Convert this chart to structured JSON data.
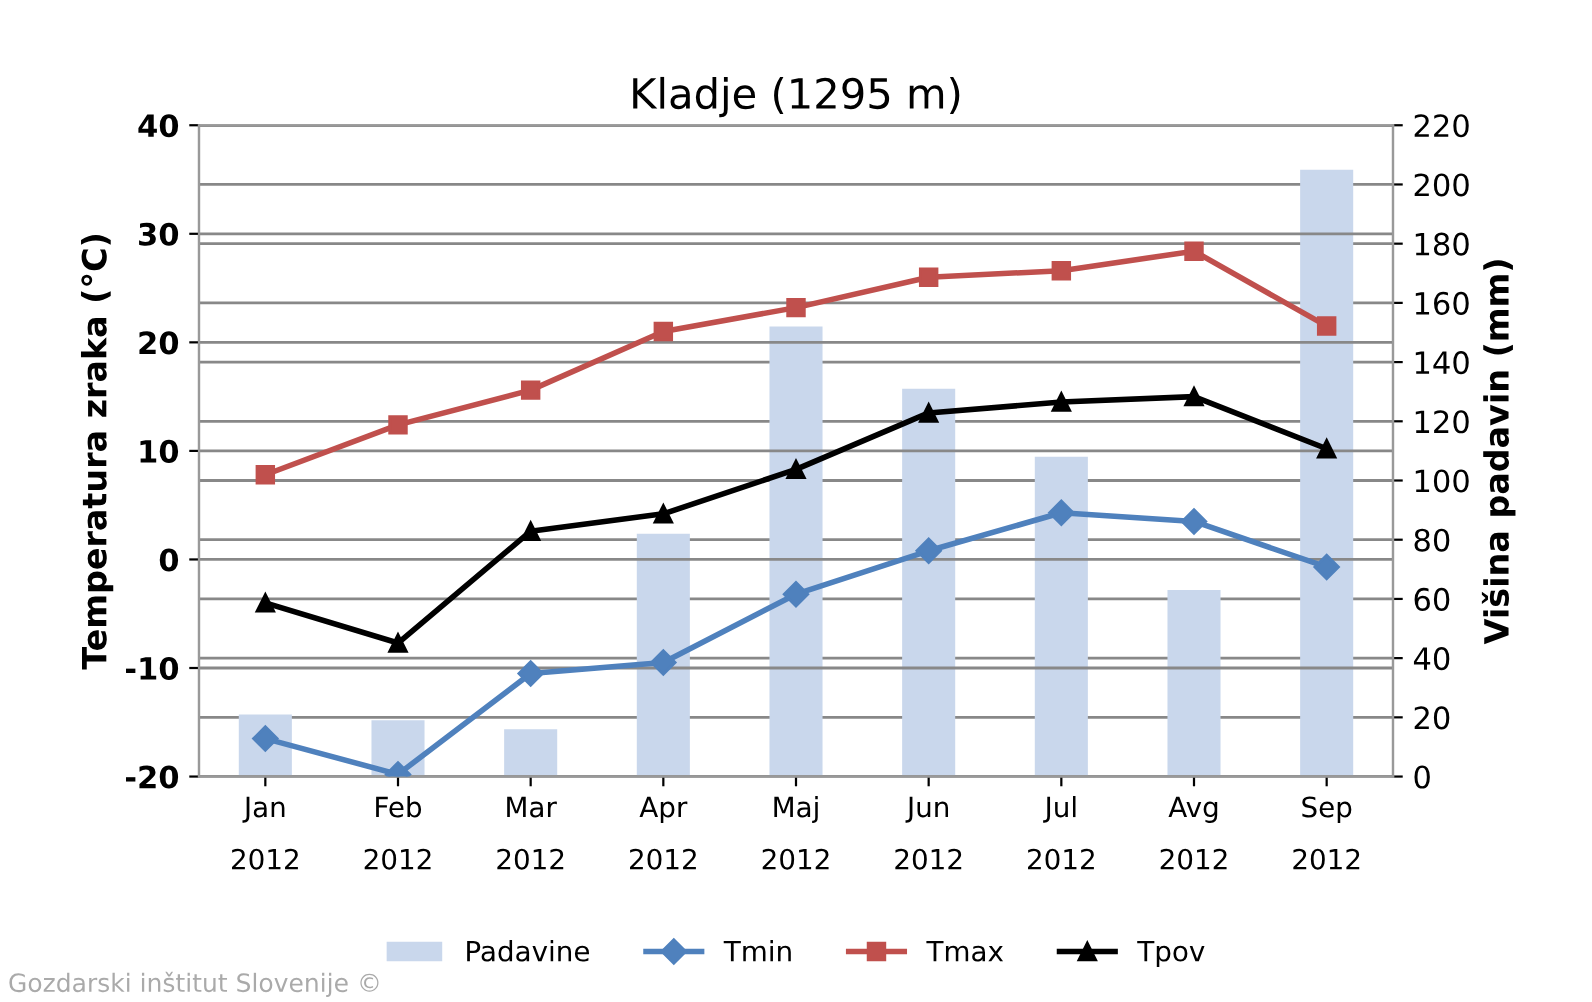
{
  "chart_data": {
    "type": "line",
    "title": "Kladje (1295 m)",
    "ylabel": "Temperatura zraka (°C)",
    "y2label": "Višina padavin (mm)",
    "categories": [
      "Jan\n2012",
      "Feb\n2012",
      "Mar\n2012",
      "Apr\n2012",
      "Maj\n2012",
      "Jun\n2012",
      "Jul\n2012",
      "Avg\n2012",
      "Sep\n2012"
    ],
    "series": [
      {
        "name": "Padavine",
        "type": "bar",
        "axis": "y2",
        "color": "#c9d7ec",
        "values": [
          21,
          19,
          16,
          82,
          152,
          131,
          108,
          63,
          205
        ]
      },
      {
        "name": "Tmin",
        "color": "#4f81bd",
        "marker": "diamond",
        "values": [
          -16.5,
          -19.8,
          -10.5,
          -9.5,
          -3.2,
          0.8,
          4.3,
          3.5,
          -0.7
        ]
      },
      {
        "name": "Tmax",
        "color": "#c0504d",
        "marker": "square",
        "values": [
          7.8,
          12.4,
          15.6,
          21.0,
          23.2,
          26.0,
          26.6,
          28.4,
          21.5
        ]
      },
      {
        "name": "Tpov",
        "color": "#000000",
        "marker": "triangle",
        "values": [
          -4.0,
          -7.7,
          2.6,
          4.2,
          8.3,
          13.5,
          14.5,
          15.0,
          10.2
        ]
      }
    ],
    "ylim": [
      -20,
      40
    ],
    "yticks": [
      -20,
      -10,
      0,
      10,
      20,
      30,
      40
    ],
    "y2lim": [
      0,
      220
    ],
    "y2ticks": [
      0,
      20,
      40,
      60,
      80,
      100,
      120,
      140,
      160,
      180,
      200,
      220
    ],
    "grid": "y",
    "legend": "bottom",
    "line_style": "solid",
    "annotations": [
      "Gozdarski inštitut Slovenije ©"
    ]
  }
}
